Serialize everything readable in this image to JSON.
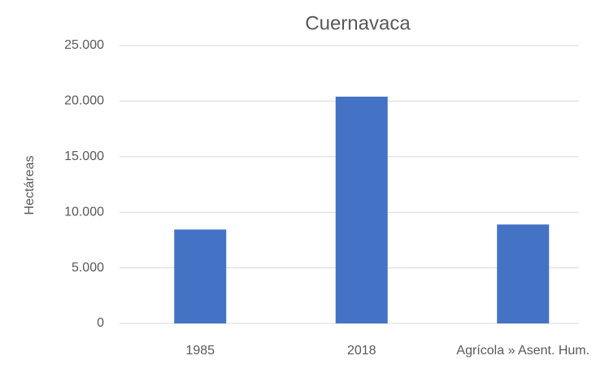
{
  "chart_data": {
    "type": "bar",
    "title": "Cuernavaca",
    "y_label": "Hectáreas",
    "categories": [
      "1985",
      "2018",
      "Agrícola » Asent. Hum."
    ],
    "values": [
      8450,
      20400,
      8900
    ],
    "color": "#4472c4",
    "ylim": [
      0,
      25000
    ],
    "yticks": [
      0,
      {
        "value": 5000,
        "label": "5.000"
      },
      {
        "value": 10000,
        "label": "10.000"
      },
      {
        "value": 15000,
        "label": "15.000"
      },
      {
        "value": 20000,
        "label": "20.000"
      },
      {
        "value": 25000,
        "label": "25.000"
      }
    ],
    "grid": true
  }
}
